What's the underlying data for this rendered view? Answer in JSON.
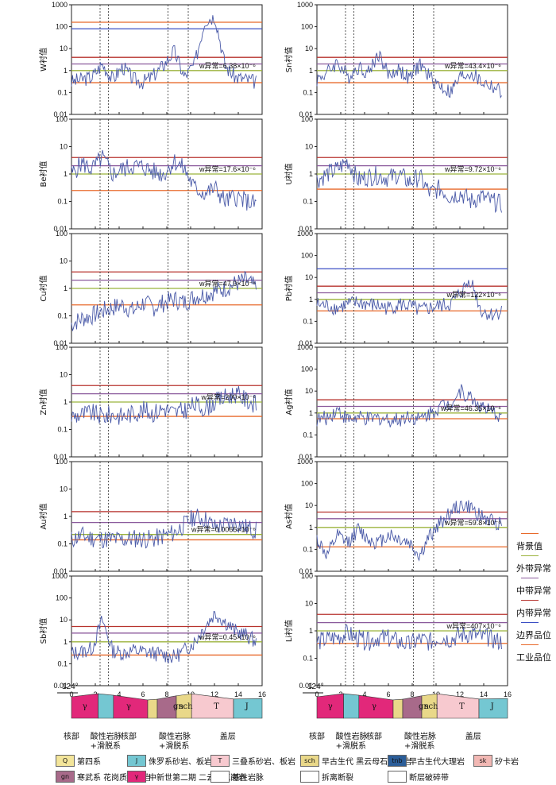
{
  "chart_data": {
    "type": "line",
    "xlabel": "剖面长度/km",
    "xticks": [
      "0",
      "2",
      "4",
      "6",
      "8",
      "10",
      "12",
      "14",
      "16"
    ],
    "xlim": [
      0,
      16
    ],
    "yscale": "log",
    "faults_km": [
      2.4,
      3.1,
      8.1,
      9.8
    ],
    "panels": [
      {
        "element": "W",
        "ylabel": "W衬值",
        "ylim_ticks": [
          "1000",
          "100",
          "10",
          "1",
          "0.1",
          "0.01"
        ],
        "note": "w异常=6.38×10⁻⁶",
        "thresholds": [
          0.28,
          1.0,
          2.0,
          4.0,
          80,
          160
        ],
        "series": {
          "profile": [
            0.3,
            0.4,
            0.5,
            2.0,
            0.4,
            1.5,
            0.4,
            0.3,
            0.6,
            1.8,
            8,
            0.5,
            2,
            200,
            300,
            1.5,
            0.5,
            0.4,
            0.3
          ]
        }
      },
      {
        "element": "Sn",
        "ylabel": "Sn衬值",
        "ylim_ticks": [
          "1000",
          "100",
          "10",
          "1",
          "0.1",
          "0.01"
        ],
        "note": "w异常=43.4×10⁻⁶",
        "thresholds": [
          0.28,
          1.0,
          2.0,
          4.0
        ],
        "series": {
          "profile": [
            0.4,
            0.8,
            2.5,
            0.5,
            1.5,
            0.8,
            6,
            0.6,
            1.2,
            0.4,
            2,
            0.5,
            0.2,
            0.1,
            0.5,
            0.8,
            0.3,
            0.2,
            0.1
          ]
        }
      },
      {
        "element": "Be",
        "ylabel": "Be衬值",
        "ylim_ticks": [
          "100",
          "10",
          "1",
          "0.1",
          "0.01"
        ],
        "note": "w异常=17.6×10⁻⁶",
        "thresholds": [
          0.25,
          1.0,
          2.0,
          4.0
        ],
        "series": {
          "profile": [
            1.0,
            2.5,
            1.5,
            4,
            1.0,
            1.5,
            2,
            1.8,
            1.2,
            1.0,
            3,
            1.5,
            0.3,
            0.2,
            0.3,
            0.1,
            0.15,
            0.1,
            0.08
          ]
        }
      },
      {
        "element": "U",
        "ylabel": "U衬值",
        "ylim_ticks": [
          "100",
          "10",
          "1",
          "0.1",
          "0.01"
        ],
        "note": "w异常=9.72×10⁻⁶",
        "thresholds": [
          0.28,
          1.0,
          2.0,
          4.0
        ],
        "series": {
          "profile": [
            0.6,
            1.0,
            1.5,
            3,
            0.6,
            0.8,
            0.9,
            0.7,
            1.0,
            0.5,
            0.8,
            0.2,
            0.3,
            0.15,
            0.2,
            0.1,
            0.15,
            0.1,
            0.08
          ]
        }
      },
      {
        "element": "Cu",
        "ylabel": "Cu衬值",
        "ylim_ticks": [
          "100",
          "10",
          "1",
          "0.1",
          "0.01"
        ],
        "note": "w异常=47.9×10⁻⁶",
        "thresholds": [
          0.25,
          1.0,
          2.0,
          4.0
        ],
        "series": {
          "profile": [
            0.05,
            0.08,
            0.1,
            0.15,
            0.2,
            0.25,
            0.15,
            0.3,
            0.2,
            0.3,
            0.4,
            0.3,
            0.5,
            0.6,
            0.8,
            1.0,
            1.5,
            2,
            1.0
          ]
        }
      },
      {
        "element": "Pb",
        "ylabel": "Pb衬值",
        "ylim_ticks": [
          "1000",
          "100",
          "10",
          "1",
          "0.1",
          "0.01"
        ],
        "note": "w异常=122×10⁻⁶",
        "thresholds": [
          0.3,
          1.0,
          2.0,
          4.0,
          25
        ],
        "series": {
          "profile": [
            0.6,
            0.5,
            0.4,
            0.6,
            0.7,
            0.6,
            0.5,
            0.4,
            0.6,
            0.5,
            0.3,
            0.4,
            0.5,
            0.6,
            2,
            8,
            0.3,
            0.2,
            0.3
          ]
        }
      },
      {
        "element": "Zn",
        "ylabel": "Zn衬值",
        "ylim_ticks": [
          "100",
          "10",
          "1",
          "0.1",
          "0.01"
        ],
        "note": "w异常=200×10⁻⁶",
        "thresholds": [
          0.3,
          1.0,
          2.0,
          4.0
        ],
        "series": {
          "profile": [
            0.3,
            0.35,
            0.4,
            0.3,
            0.35,
            0.3,
            0.4,
            0.5,
            0.4,
            0.6,
            0.4,
            0.5,
            0.8,
            0.6,
            1.0,
            1.5,
            2,
            1.2,
            0.8
          ]
        }
      },
      {
        "element": "Ag",
        "ylabel": "Ag衬值",
        "ylim_ticks": [
          "1000",
          "100",
          "10",
          "1",
          "0.1",
          "0.01"
        ],
        "note": "w异常=46.35×10⁻⁶",
        "thresholds": [
          0.55,
          1.0,
          2.0,
          4.0
        ],
        "series": {
          "profile": [
            0.5,
            0.6,
            1.5,
            0.5,
            0.6,
            0.5,
            0.6,
            0.5,
            0.5,
            0.8,
            0.5,
            1.0,
            2,
            3,
            10,
            5,
            2,
            1.0,
            0.8
          ]
        }
      },
      {
        "element": "Au",
        "ylabel": "Au衬值",
        "ylim_ticks": [
          "100",
          "10",
          "1",
          "0.1",
          "0.01"
        ],
        "note": "w异常=0.0065×10⁻⁶",
        "thresholds": [
          0.14,
          0.22,
          0.6,
          1.5
        ],
        "series": {
          "profile": [
            0.14,
            0.2,
            0.16,
            0.15,
            0.15,
            0.14,
            0.16,
            0.15,
            0.15,
            0.2,
            0.25,
            0.5,
            1.0,
            0.8,
            0.4,
            0.5,
            0.6,
            0.4,
            0.3
          ]
        }
      },
      {
        "element": "As",
        "ylabel": "As衬值",
        "ylim_ticks": [
          "1000",
          "100",
          "10",
          "1",
          "0.1",
          "0.01"
        ],
        "note": "w异常=59.8×10⁻⁶",
        "thresholds": [
          0.13,
          1.0,
          2.5,
          5.0
        ],
        "series": {
          "profile": [
            0.3,
            0.05,
            0.4,
            0.2,
            0.8,
            0.3,
            0.2,
            0.5,
            0.3,
            0.2,
            0.05,
            0.4,
            1.5,
            5,
            10,
            8,
            3,
            2,
            1.5
          ]
        }
      },
      {
        "element": "Sb",
        "ylabel": "Sb衬值",
        "ylim_ticks": [
          "1000",
          "100",
          "10",
          "1",
          "0.1",
          "0.01"
        ],
        "note": "w异常=0.45×10⁻⁶",
        "thresholds": [
          0.25,
          1.0,
          2.5,
          5.0
        ],
        "series": {
          "profile": [
            0.3,
            0.35,
            0.5,
            10,
            0.4,
            0.3,
            0.4,
            0.35,
            0.3,
            0.25,
            0.2,
            0.4,
            1,
            5,
            20,
            8,
            3,
            2,
            1
          ]
        }
      },
      {
        "element": "Li",
        "ylabel": "Li衬值",
        "ylim_ticks": [
          "100",
          "10",
          "1",
          "0.1",
          "0.01"
        ],
        "note": "w异常=407×10⁻⁶",
        "thresholds": [
          0.35,
          1.0,
          2.0,
          4.0
        ],
        "series": {
          "profile": [
            0.4,
            0.5,
            0.6,
            0.8,
            0.5,
            0.4,
            0.6,
            0.5,
            0.4,
            0.3,
            0.5,
            0.4,
            0.6,
            0.5,
            0.7,
            0.8,
            0.6,
            0.5,
            0.4
          ]
        }
      }
    ]
  },
  "threshold_legend": [
    {
      "label": "背景值",
      "color": "#e8692a"
    },
    {
      "label": "外带异常",
      "color": "#9bb33c"
    },
    {
      "label": "中带异常",
      "color": "#8b5a9c"
    },
    {
      "label": "内带异常",
      "color": "#b7332e"
    },
    {
      "label": "边界品位",
      "color": "#3b4fc4"
    },
    {
      "label": "工业品位",
      "color": "#e8692a"
    }
  ],
  "section": {
    "azimuth": "124°",
    "labels": [
      "核部",
      "酸性岩脉",
      "+滑脱系",
      "核部",
      "酸性岩脉",
      "+滑脱系",
      "盖层"
    ],
    "units": [
      "γ",
      "γ",
      "gn",
      "sch",
      "T",
      "J"
    ]
  },
  "geo_legend": [
    {
      "code": "Q",
      "label": "第四系",
      "color": "#f3e59a"
    },
    {
      "code": "J",
      "label": "侏罗系砂岩、板岩",
      "color": "#74c7d2"
    },
    {
      "code": "T",
      "label": "三叠系砂岩、板岩",
      "color": "#f7c9cf"
    },
    {
      "code": "sch",
      "label": "早古生代",
      "label2": "黑云母石英片岩",
      "color": "#e9d889"
    },
    {
      "code": "tnb",
      "label": "早古生代大理岩",
      "color": "#2b5d98"
    },
    {
      "code": "sk",
      "label": "矽卡岩",
      "color": "#f2b8b4"
    },
    {
      "code": "gn",
      "label": "寒武系",
      "label2": "花岗质片麻岩",
      "color": "#a86a8a"
    },
    {
      "code": "γ",
      "label": "中新世第二期",
      "label2": "二云母花岗岩",
      "color": "#e2287a"
    },
    {
      "code": "",
      "label": "基性岩脉",
      "color": "#ffffff"
    },
    {
      "code": "",
      "label": "拆离断裂",
      "color": "#ffffff"
    },
    {
      "code": "",
      "label": "断层破碎带",
      "color": "#ffffff"
    }
  ]
}
